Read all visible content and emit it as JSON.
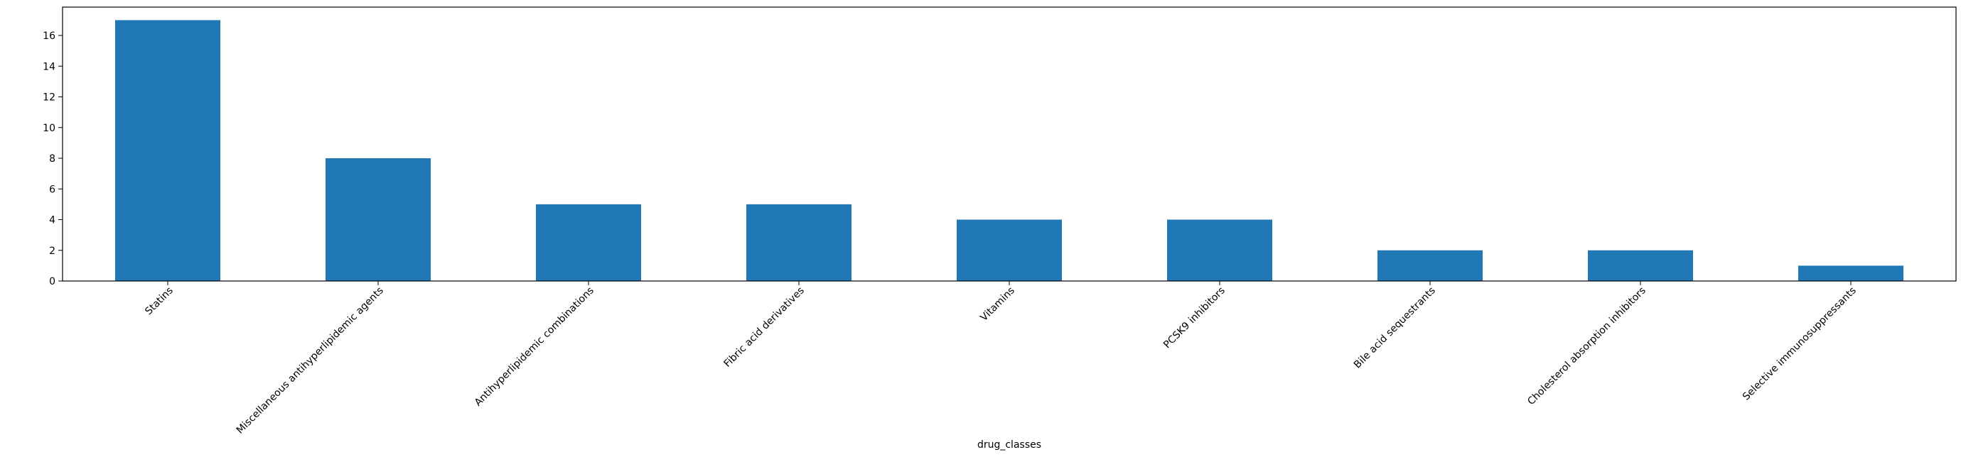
{
  "chart_data": {
    "type": "bar",
    "categories": [
      "Statins",
      "Miscellaneous antihyperlipidemic agents",
      "Antihyperlipidemic combinations",
      "Fibric acid derivatives",
      "Vitamins",
      "PCSK9 inhibitors",
      "Bile acid sequestrants",
      "Cholesterol absorption inhibitors",
      "Selective immunosuppressants"
    ],
    "values": [
      17,
      8,
      5,
      5,
      4,
      4,
      2,
      2,
      1
    ],
    "title": "",
    "xlabel": "drug_classes",
    "ylabel": "",
    "ylim": [
      0,
      17.85
    ],
    "yticks": [
      0,
      2,
      4,
      6,
      8,
      10,
      12,
      14,
      16
    ],
    "bar_color": "#1f77b4",
    "grid": false,
    "legend": "none"
  }
}
